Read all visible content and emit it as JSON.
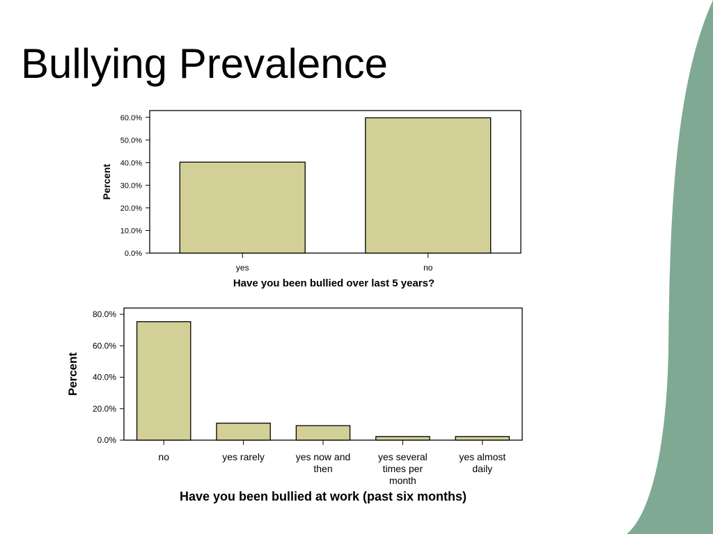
{
  "slide": {
    "title": "Bullying Prevalence",
    "accent_color": "#7fa992"
  },
  "chart_data": [
    {
      "type": "bar",
      "categories": [
        "yes",
        "no"
      ],
      "values": [
        40.2,
        59.8
      ],
      "xlabel": "Have you been bullied over last 5 years?",
      "ylabel": "Percent",
      "ylim": [
        0,
        63
      ],
      "yticks": [
        0,
        10,
        20,
        30,
        40,
        50,
        60
      ],
      "ytick_labels": [
        "0.0%",
        "10.0%",
        "20.0%",
        "30.0%",
        "40.0%",
        "50.0%",
        "60.0%"
      ],
      "bar_color": "#d3d097",
      "grid": false
    },
    {
      "type": "bar",
      "categories": [
        [
          "no"
        ],
        [
          "yes rarely"
        ],
        [
          "yes now and",
          "then"
        ],
        [
          "yes several",
          "times per",
          "month"
        ],
        [
          "yes almost",
          "daily"
        ]
      ],
      "values": [
        75.3,
        10.8,
        9.2,
        2.3,
        2.3
      ],
      "xlabel": "Have you been bullied at work (past six months)",
      "ylabel": "Percent",
      "ylim": [
        0,
        84
      ],
      "yticks": [
        0,
        20,
        40,
        60,
        80
      ],
      "ytick_labels": [
        "0.0%",
        "20.0%",
        "40.0%",
        "60.0%",
        "80.0%"
      ],
      "bar_color": "#d3d097",
      "grid": false
    }
  ]
}
